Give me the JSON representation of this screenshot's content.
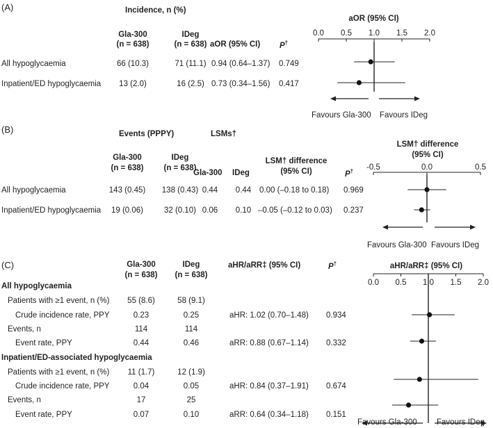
{
  "panel_a": {
    "label": "(A)",
    "group_header": "Incidence, n (%)",
    "col_gla": [
      "Gla-300",
      "(n = 638)"
    ],
    "col_ideg": [
      "IDeg",
      "(n = 638)"
    ],
    "col_aor": "aOR (95% CI)",
    "col_p": "P",
    "col_p_sup": "†",
    "rows": [
      {
        "label": "All hypoglycaemia",
        "gla": "66 (10.3)",
        "ideg": "71 (11.1)",
        "aor": "0.94 (0.64–1.37)",
        "p": "0.749"
      },
      {
        "label": "Inpatient/ED hypoglycaemia",
        "gla": "13 (2.0)",
        "ideg": "16 (2.5)",
        "aor": "0.73 (0.34–1.56)",
        "p": "0.417"
      }
    ],
    "plot_title": "aOR (95% CI)",
    "favours_left": "Favours Gla-300",
    "favours_right": "Favours IDeg"
  },
  "panel_b": {
    "label": "(B)",
    "group_events": "Events (PPPY)",
    "group_lsms": "LSMs†",
    "col_gla": [
      "Gla-300",
      "(n = 638)"
    ],
    "col_ideg": [
      "IDeg",
      "(n = 638)"
    ],
    "col_lsm_gla": "Gla-300",
    "col_lsm_ideg": "IDeg",
    "col_diff": [
      "LSM† difference",
      "(95% CI)"
    ],
    "col_p": "P",
    "col_p_sup": "†",
    "rows": [
      {
        "label": "All hypoglycaemia",
        "gla": "143 (0.45)",
        "ideg": "138 (0.43)",
        "lsm_gla": "0.44",
        "lsm_ideg": "0.44",
        "diff": "0.00 (–0.18 to 0.18)",
        "p": "0.969"
      },
      {
        "label": "Inpatient/ED hypoglycaemia",
        "gla": "19 (0.06)",
        "ideg": "32 (0.10)",
        "lsm_gla": "0.06",
        "lsm_ideg": "0.10",
        "diff": "–0.05 (–0.12 to 0.03)",
        "p": "0.237"
      }
    ],
    "plot_title": [
      "LSM† difference",
      "(95% CI)"
    ],
    "favours_left": "Favours Gla-300",
    "favours_right": "Favours IDeg"
  },
  "panel_c": {
    "label": "(C)",
    "col_gla": [
      "Gla-300",
      "(n = 638)"
    ],
    "col_ideg": [
      "IDeg",
      "(n = 638)"
    ],
    "col_ratio": "aHR/aRR‡ (95% CI)",
    "col_p": "P",
    "col_p_sup": "†",
    "sections": [
      {
        "title": "All hypoglycaemia",
        "rows": [
          {
            "label": "Patients with ≥1 event, n (%)",
            "gla": "55 (8.6)",
            "ideg": "58 (9.1)",
            "ratio": "",
            "p": ""
          },
          {
            "label": "Crude incidence rate, PPY",
            "gla": "0.23",
            "ideg": "0.25",
            "ratio": "aHR: 1.02 (0.70–1.48)",
            "p": "0.934"
          },
          {
            "label": "Events, n",
            "gla": "114",
            "ideg": "114",
            "ratio": "",
            "p": ""
          },
          {
            "label": "Event rate, PPY",
            "gla": "0.44",
            "ideg": "0.46",
            "ratio": "aRR: 0.88 (0.67–1.14)",
            "p": "0.332"
          }
        ]
      },
      {
        "title": "Inpatient/ED-associated hypoglycaemia",
        "rows": [
          {
            "label": "Patients with ≥1 event, n (%)",
            "gla": "11 (1.7)",
            "ideg": "12 (1.9)",
            "ratio": "",
            "p": ""
          },
          {
            "label": "Crude incidence rate, PPY",
            "gla": "0.04",
            "ideg": "0.05",
            "ratio": "aHR: 0.84 (0.37–1.91)",
            "p": "0.674"
          },
          {
            "label": "Events, n",
            "gla": "17",
            "ideg": "25",
            "ratio": "",
            "p": ""
          },
          {
            "label": "Event rate, PPY",
            "gla": "0.07",
            "ideg": "0.10",
            "ratio": "aRR: 0.64 (0.34–1.18)",
            "p": "0.151"
          }
        ]
      }
    ],
    "plot_title": "aHR/aRR‡ (95% CI)",
    "favours_left": "Favours Gla-300",
    "favours_right": "Favours IDeg"
  },
  "chart_data": [
    {
      "type": "scatter",
      "subtype": "forest",
      "title": "aOR (95% CI)",
      "xlim": [
        0.0,
        2.0
      ],
      "xticks": [
        "0.0",
        "0.5",
        "1.0",
        "1.5",
        "2.0"
      ],
      "xtick_values": [
        0.0,
        0.5,
        1.0,
        1.5,
        2.0
      ],
      "reference": 1.0,
      "points": [
        {
          "label": "All hypoglycaemia",
          "estimate": 0.94,
          "lower": 0.64,
          "upper": 1.37
        },
        {
          "label": "Inpatient/ED hypoglycaemia",
          "estimate": 0.73,
          "lower": 0.34,
          "upper": 1.56
        }
      ]
    },
    {
      "type": "scatter",
      "subtype": "forest",
      "title": "LSM† difference (95% CI)",
      "xlim": [
        -0.5,
        0.5
      ],
      "xticks": [
        "-0.5",
        "0.0",
        "0.5"
      ],
      "xtick_values": [
        -0.5,
        0.0,
        0.5
      ],
      "reference": 0.0,
      "points": [
        {
          "label": "All hypoglycaemia",
          "estimate": 0.0,
          "lower": -0.18,
          "upper": 0.18
        },
        {
          "label": "Inpatient/ED hypoglycaemia",
          "estimate": -0.05,
          "lower": -0.12,
          "upper": 0.03
        }
      ]
    },
    {
      "type": "scatter",
      "subtype": "forest",
      "title": "aHR/aRR‡ (95% CI)",
      "xlim": [
        0.0,
        2.0
      ],
      "xticks": [
        "0.0",
        "0.5",
        "1.0",
        "1.5",
        "2.0"
      ],
      "xtick_values": [
        0.0,
        0.5,
        1.0,
        1.5,
        2.0
      ],
      "reference": 1.0,
      "points": [
        {
          "label": "All hypoglycaemia: Crude incidence rate",
          "estimate": 1.02,
          "lower": 0.7,
          "upper": 1.48
        },
        {
          "label": "All hypoglycaemia: Event rate",
          "estimate": 0.88,
          "lower": 0.67,
          "upper": 1.14
        },
        {
          "label": "Inpatient/ED: Crude incidence rate",
          "estimate": 0.84,
          "lower": 0.37,
          "upper": 1.91
        },
        {
          "label": "Inpatient/ED: Event rate",
          "estimate": 0.64,
          "lower": 0.34,
          "upper": 1.18
        }
      ]
    }
  ]
}
